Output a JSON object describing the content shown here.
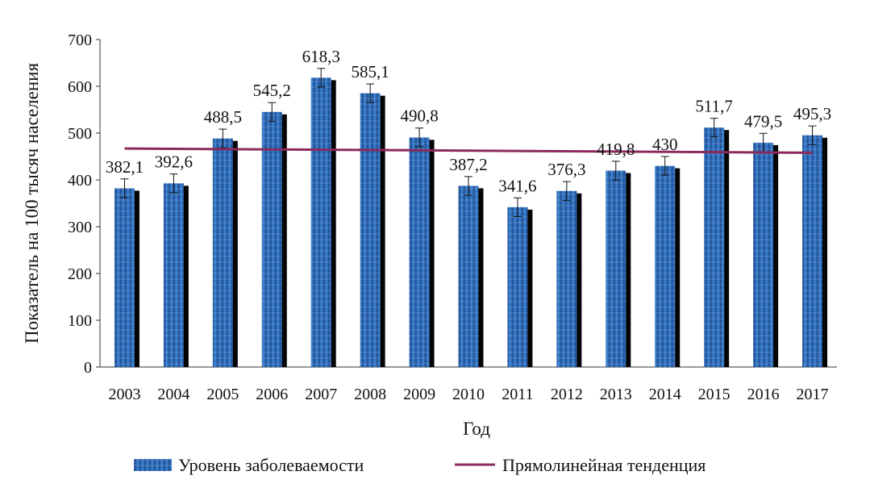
{
  "chart_data": {
    "type": "bar",
    "categories": [
      "2003",
      "2004",
      "2005",
      "2006",
      "2007",
      "2008",
      "2009",
      "2010",
      "2011",
      "2012",
      "2013",
      "2014",
      "2015",
      "2016",
      "2017"
    ],
    "series": [
      {
        "name": "Уровень заболеваемости",
        "values": [
          382.1,
          392.6,
          488.5,
          545.2,
          618.3,
          585.1,
          490.8,
          387.2,
          341.6,
          376.3,
          419.8,
          430,
          511.7,
          479.5,
          495.3
        ],
        "value_labels": [
          "382,1",
          "392,6",
          "488,5",
          "545,2",
          "618,3",
          "585,1",
          "490,8",
          "387,2",
          "341,6",
          "376,3",
          "419,8",
          "430",
          "511,7",
          "479,5",
          "495,3"
        ],
        "error": 20,
        "color": "#2e6cbf"
      },
      {
        "name": "Прямолинейная тенденция",
        "type": "line",
        "start": 467,
        "end": 458,
        "color": "#8b2a5c"
      }
    ],
    "xlabel": "Год",
    "ylabel": "Показатель на 100 тысяч населения",
    "ylim": [
      0,
      700
    ],
    "yticks": [
      "0",
      "100",
      "200",
      "300",
      "400",
      "500",
      "600",
      "700"
    ],
    "grid": false,
    "legend_position": "bottom"
  }
}
